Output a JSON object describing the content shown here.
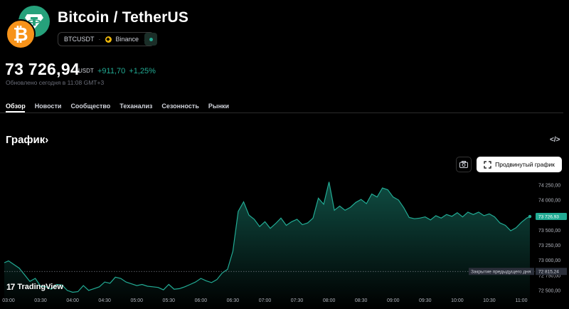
{
  "header": {
    "title": "Bitcoin / TetherUS",
    "symbol": "BTCUSDT",
    "exchange": "Binance",
    "btc_glyph": "₿"
  },
  "quote": {
    "price": "73 726,94",
    "currency": "USDT",
    "change": "+911,70",
    "change_percent": "+1,25%",
    "updated": "Обновлено сегодня в 11:08 GMT+3"
  },
  "tabs": [
    {
      "label": "Обзор",
      "active": true
    },
    {
      "label": "Новости"
    },
    {
      "label": "Сообщество"
    },
    {
      "label": "Теханализ"
    },
    {
      "label": "Сезонность"
    },
    {
      "label": "Рынки"
    }
  ],
  "section": {
    "title": "График",
    "chevron": "›",
    "embed_glyph": "</>"
  },
  "toolbar": {
    "advanced_chart_label": "Продвинутый график"
  },
  "branding": {
    "tv_mark": "17",
    "name": "TradingView"
  },
  "colors": {
    "accent_green": "#22ab94",
    "btc_orange": "#f7931a",
    "tether_green": "#26a17b"
  },
  "chart_data": {
    "type": "area",
    "x_ticks": [
      "03:00",
      "03:30",
      "04:00",
      "04:30",
      "05:00",
      "05:30",
      "06:00",
      "06:30",
      "07:00",
      "07:30",
      "08:00",
      "08:30",
      "09:00",
      "09:30",
      "10:00",
      "10:30",
      "11:00"
    ],
    "y_ticks": [
      74250,
      74000,
      73750,
      73500,
      73250,
      73000,
      72750,
      72500
    ],
    "y_tick_labels": [
      "74 250,00",
      "74 000,00",
      "73 750,00",
      "73 500,00",
      "73 250,00",
      "73 000,00",
      "72 750,00",
      "72 500,00"
    ],
    "ylim": [
      72440,
      74330
    ],
    "xlim": [
      "02:56",
      "11:08"
    ],
    "current_price_label": "73 726,93",
    "prev_close_label_text": "Закрытие предыдущего дня",
    "prev_close_value_label": "72 815,24",
    "prev_close": 72815.24,
    "points": [
      [
        "02:56",
        72960
      ],
      [
        "03:00",
        72990
      ],
      [
        "03:05",
        72930
      ],
      [
        "03:10",
        72870
      ],
      [
        "03:15",
        72760
      ],
      [
        "03:20",
        72650
      ],
      [
        "03:25",
        72700
      ],
      [
        "03:30",
        72570
      ],
      [
        "03:35",
        72560
      ],
      [
        "03:40",
        72520
      ],
      [
        "03:45",
        72600
      ],
      [
        "03:50",
        72590
      ],
      [
        "03:55",
        72500
      ],
      [
        "04:00",
        72470
      ],
      [
        "04:05",
        72480
      ],
      [
        "04:10",
        72580
      ],
      [
        "04:15",
        72500
      ],
      [
        "04:20",
        72530
      ],
      [
        "04:25",
        72560
      ],
      [
        "04:30",
        72640
      ],
      [
        "04:35",
        72620
      ],
      [
        "04:40",
        72720
      ],
      [
        "04:45",
        72700
      ],
      [
        "04:50",
        72640
      ],
      [
        "04:55",
        72610
      ],
      [
        "05:00",
        72580
      ],
      [
        "05:05",
        72600
      ],
      [
        "05:10",
        72570
      ],
      [
        "05:15",
        72560
      ],
      [
        "05:20",
        72550
      ],
      [
        "05:25",
        72510
      ],
      [
        "05:30",
        72600
      ],
      [
        "05:35",
        72520
      ],
      [
        "05:40",
        72530
      ],
      [
        "05:45",
        72560
      ],
      [
        "05:50",
        72600
      ],
      [
        "05:55",
        72640
      ],
      [
        "06:00",
        72700
      ],
      [
        "06:05",
        72660
      ],
      [
        "06:10",
        72630
      ],
      [
        "06:15",
        72680
      ],
      [
        "06:20",
        72790
      ],
      [
        "06:25",
        72850
      ],
      [
        "06:30",
        73150
      ],
      [
        "06:35",
        73810
      ],
      [
        "06:40",
        73970
      ],
      [
        "06:45",
        73750
      ],
      [
        "06:50",
        73680
      ],
      [
        "06:55",
        73560
      ],
      [
        "07:00",
        73640
      ],
      [
        "07:05",
        73530
      ],
      [
        "07:10",
        73610
      ],
      [
        "07:15",
        73700
      ],
      [
        "07:20",
        73580
      ],
      [
        "07:25",
        73640
      ],
      [
        "07:30",
        73680
      ],
      [
        "07:35",
        73590
      ],
      [
        "07:40",
        73620
      ],
      [
        "07:45",
        73700
      ],
      [
        "07:50",
        74030
      ],
      [
        "07:55",
        73930
      ],
      [
        "08:00",
        74300
      ],
      [
        "08:05",
        73830
      ],
      [
        "08:10",
        73900
      ],
      [
        "08:15",
        73830
      ],
      [
        "08:20",
        73880
      ],
      [
        "08:25",
        73960
      ],
      [
        "08:30",
        74010
      ],
      [
        "08:35",
        73940
      ],
      [
        "08:40",
        74100
      ],
      [
        "08:45",
        74050
      ],
      [
        "08:50",
        74200
      ],
      [
        "08:55",
        74170
      ],
      [
        "09:00",
        74050
      ],
      [
        "09:05",
        74000
      ],
      [
        "09:10",
        73870
      ],
      [
        "09:15",
        73710
      ],
      [
        "09:20",
        73690
      ],
      [
        "09:25",
        73700
      ],
      [
        "09:30",
        73720
      ],
      [
        "09:35",
        73670
      ],
      [
        "09:40",
        73740
      ],
      [
        "09:45",
        73700
      ],
      [
        "09:50",
        73760
      ],
      [
        "09:55",
        73730
      ],
      [
        "10:00",
        73790
      ],
      [
        "10:05",
        73720
      ],
      [
        "10:10",
        73800
      ],
      [
        "10:15",
        73760
      ],
      [
        "10:20",
        73800
      ],
      [
        "10:25",
        73740
      ],
      [
        "10:30",
        73770
      ],
      [
        "10:35",
        73720
      ],
      [
        "10:40",
        73620
      ],
      [
        "10:45",
        73580
      ],
      [
        "10:50",
        73490
      ],
      [
        "10:55",
        73540
      ],
      [
        "11:00",
        73630
      ],
      [
        "11:05",
        73700
      ],
      [
        "11:08",
        73727
      ]
    ]
  }
}
